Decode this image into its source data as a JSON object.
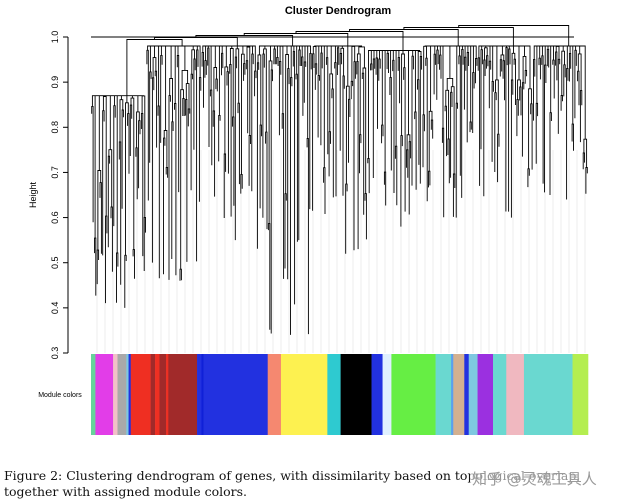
{
  "chart_data": {
    "type": "dendrogram",
    "title": "Cluster Dendrogram",
    "xlabel": "",
    "ylabel": "Height",
    "ylim": [
      0.3,
      1.0
    ],
    "yticks": [
      0.3,
      0.4,
      0.5,
      0.6,
      0.7,
      0.8,
      0.9,
      1.0
    ],
    "color_bar_label": "Module colors",
    "branches": [
      {
        "module": "magenta",
        "min_height": 0.4,
        "merge_height": 0.88
      },
      {
        "module": "red",
        "min_height": 0.46,
        "merge_height": 0.99
      },
      {
        "module": "brown",
        "min_height": 0.55,
        "merge_height": 0.99
      },
      {
        "module": "blue",
        "min_height": 0.34,
        "merge_height": 0.99
      },
      {
        "module": "yellow",
        "min_height": 0.52,
        "merge_height": 0.99
      },
      {
        "module": "black",
        "min_height": 0.58,
        "merge_height": 0.98
      },
      {
        "module": "green",
        "min_height": 0.6,
        "merge_height": 0.99
      },
      {
        "module": "turquoise",
        "min_height": 0.6,
        "merge_height": 0.99
      },
      {
        "module": "greenyellow",
        "min_height": 0.64,
        "merge_height": 0.99
      }
    ],
    "module_color_segments": [
      {
        "color": "#67d39a",
        "w": 4
      },
      {
        "color": "#e23de8",
        "w": 16
      },
      {
        "color": "#f2c0c8",
        "w": 4
      },
      {
        "color": "#a9a9a9",
        "w": 8
      },
      {
        "color": "#7ec8e0",
        "w": 2
      },
      {
        "color": "#2231e0",
        "w": 2
      },
      {
        "color": "#ef2f22",
        "w": 18
      },
      {
        "color": "#a12a2a",
        "w": 4
      },
      {
        "color": "#ef2f22",
        "w": 4
      },
      {
        "color": "#a12a2a",
        "w": 6
      },
      {
        "color": "#ef2f22",
        "w": 2
      },
      {
        "color": "#a12a2a",
        "w": 26
      },
      {
        "color": "#2231e0",
        "w": 4
      },
      {
        "color": "#1020d8",
        "w": 2
      },
      {
        "color": "#2231e0",
        "w": 58
      },
      {
        "color": "#f58870",
        "w": 12
      },
      {
        "color": "#fdf150",
        "w": 42
      },
      {
        "color": "#2ecad0",
        "w": 12
      },
      {
        "color": "#000000",
        "w": 28
      },
      {
        "color": "#2231e0",
        "w": 10
      },
      {
        "color": "#e0f0ff",
        "w": 8
      },
      {
        "color": "#66ee44",
        "w": 40
      },
      {
        "color": "#6ad8d0",
        "w": 14
      },
      {
        "color": "#5aa0ee",
        "w": 2
      },
      {
        "color": "#d3b090",
        "w": 10
      },
      {
        "color": "#2231e0",
        "w": 4
      },
      {
        "color": "#7ec8e0",
        "w": 8
      },
      {
        "color": "#9b30e0",
        "w": 14
      },
      {
        "color": "#6ad8d0",
        "w": 12
      },
      {
        "color": "#f0b8c0",
        "w": 16
      },
      {
        "color": "#6ad8d0",
        "w": 44
      },
      {
        "color": "#b4ee50",
        "w": 14
      }
    ],
    "caption": "Figure 2: Clustering dendrogram of genes, with dissimilarity based on topological overlap, together with assigned module colors."
  },
  "watermark": "知乎 @灵魂工具人",
  "colors": {
    "background": "#ffffff",
    "tree": "#000000",
    "axis": "#000000",
    "guide_lines": "#d9d9d9"
  }
}
